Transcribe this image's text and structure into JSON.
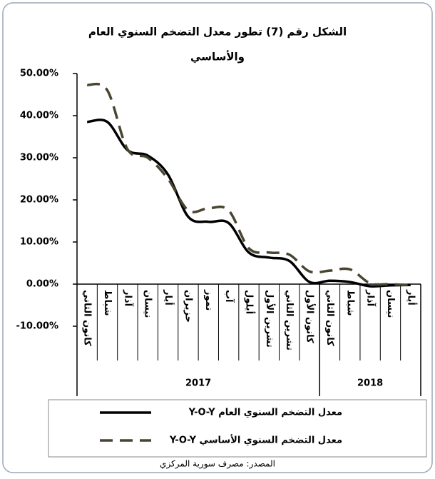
{
  "chart_data": {
    "type": "line",
    "title": [
      "الشكل رقم (7) تطور معدل التضخم السنوي العام",
      "والأساسي"
    ],
    "groups": [
      {
        "label": "2017",
        "categories": [
          "كانون الثاني",
          "شباط",
          "آذار",
          "نيسان",
          "أيار",
          "حزيران",
          "تموز",
          "آب",
          "أيلول",
          "تشرين الأول",
          "تشرين الثاني",
          "كانون الأول"
        ]
      },
      {
        "label": "2018",
        "categories": [
          "كانون الثاني",
          "شباط",
          "آذار",
          "نيسان",
          "أيار"
        ]
      }
    ],
    "series": [
      {
        "name": "معدل التضخم السنوي العام Y-O-Y",
        "color": "#000000",
        "dashed": false,
        "values": [
          38.5,
          38.5,
          31.8,
          30.5,
          26,
          16,
          14.8,
          14.5,
          7.5,
          6.3,
          5.5,
          0.5,
          0.8,
          0.5,
          -0.5,
          -0.3,
          -0.2
        ]
      },
      {
        "name": "معدل التضخم السنوي الأساسي Y-O-Y",
        "color": "#4a4530",
        "dashed": true,
        "values": [
          47.3,
          46,
          32,
          30,
          25,
          17.5,
          18,
          17.5,
          8.5,
          7.5,
          7,
          3,
          3.2,
          3.5,
          0.2,
          0,
          -0.3
        ]
      }
    ],
    "ylim": [
      -10,
      50
    ],
    "yticks": [
      {
        "value": 50,
        "label": "50.00%"
      },
      {
        "value": 40,
        "label": "40.00%"
      },
      {
        "value": 30,
        "label": "30.00%"
      },
      {
        "value": 20,
        "label": "20.00%"
      },
      {
        "value": 10,
        "label": "10.00%"
      },
      {
        "value": 0,
        "label": "0.00%"
      },
      {
        "value": -10,
        "label": "-10.00%"
      }
    ],
    "source": "المصدر: مصرف سورية المركزي"
  }
}
